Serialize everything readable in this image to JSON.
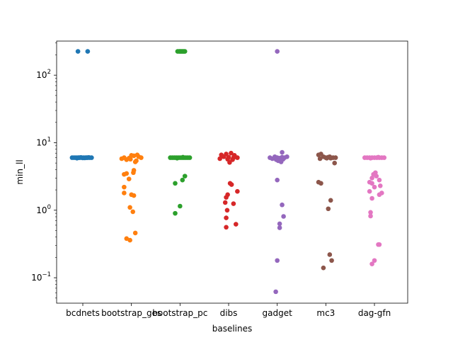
{
  "chart_data": {
    "type": "scatter",
    "title": "",
    "xlabel": "baselines",
    "ylabel": "min_ll",
    "yscale": "log",
    "ylim": [
      0.042,
      320
    ],
    "yticks": [
      {
        "value": 0.1,
        "base": "10",
        "exp": "−1"
      },
      {
        "value": 1,
        "base": "10",
        "exp": "0"
      },
      {
        "value": 10,
        "base": "10",
        "exp": "1"
      },
      {
        "value": 100,
        "base": "10",
        "exp": "2"
      }
    ],
    "grid": false,
    "legend": "none",
    "categories": [
      "bcdnets",
      "bootstrap_ges",
      "bootstrap_pc",
      "dibs",
      "gadget",
      "mc3",
      "dag-gfn"
    ],
    "series": [
      {
        "color": "#1f77b4",
        "points": [
          [
            -0.1,
            225
          ],
          [
            0.1,
            225
          ],
          [
            -0.22,
            6
          ],
          [
            -0.18,
            6
          ],
          [
            -0.14,
            6
          ],
          [
            -0.1,
            6
          ],
          [
            -0.06,
            6
          ],
          [
            -0.02,
            6
          ],
          [
            0.02,
            6
          ],
          [
            0.06,
            6
          ],
          [
            0.1,
            6
          ],
          [
            0.14,
            6
          ],
          [
            0.18,
            6
          ],
          [
            -0.12,
            5.9
          ],
          [
            0.0,
            5.95
          ],
          [
            0.12,
            6.05
          ],
          [
            -0.04,
            6.05
          ],
          [
            0.04,
            5.95
          ],
          [
            0.08,
            6.0
          ],
          [
            -0.08,
            6.0
          ]
        ]
      },
      {
        "color": "#ff7f0e",
        "points": [
          [
            -0.15,
            6.0
          ],
          [
            -0.05,
            5.9
          ],
          [
            0.05,
            6.4
          ],
          [
            0.15,
            6.2
          ],
          [
            -0.1,
            5.6
          ],
          [
            0.0,
            6.5
          ],
          [
            0.1,
            5.4
          ],
          [
            -0.2,
            5.8
          ],
          [
            0.2,
            6.0
          ],
          [
            0.08,
            5.2
          ],
          [
            -0.02,
            5.7
          ],
          [
            0.12,
            6.6
          ],
          [
            0.05,
            3.9
          ],
          [
            0.04,
            3.6
          ],
          [
            -0.1,
            3.5
          ],
          [
            -0.15,
            3.4
          ],
          [
            -0.05,
            2.9
          ],
          [
            -0.15,
            2.2
          ],
          [
            -0.15,
            1.8
          ],
          [
            0.0,
            1.7
          ],
          [
            0.05,
            1.65
          ],
          [
            -0.03,
            1.1
          ],
          [
            0.03,
            0.95
          ],
          [
            0.08,
            0.46
          ],
          [
            -0.1,
            0.38
          ],
          [
            -0.03,
            0.36
          ]
        ]
      },
      {
        "color": "#2ca02c",
        "points": [
          [
            -0.05,
            225
          ],
          [
            -0.02,
            225
          ],
          [
            0.0,
            225
          ],
          [
            0.02,
            225
          ],
          [
            0.04,
            225
          ],
          [
            0.06,
            225
          ],
          [
            0.08,
            225
          ],
          [
            0.1,
            225
          ],
          [
            -0.2,
            6
          ],
          [
            -0.16,
            6
          ],
          [
            -0.12,
            6
          ],
          [
            -0.08,
            6
          ],
          [
            -0.04,
            6
          ],
          [
            0.0,
            6
          ],
          [
            0.04,
            6
          ],
          [
            0.08,
            6
          ],
          [
            0.12,
            6
          ],
          [
            0.16,
            6
          ],
          [
            0.2,
            6
          ],
          [
            -0.06,
            5.9
          ],
          [
            0.06,
            6.1
          ],
          [
            0.1,
            3.2
          ],
          [
            0.05,
            2.8
          ],
          [
            -0.1,
            2.5
          ],
          [
            0.0,
            1.15
          ],
          [
            -0.1,
            0.9
          ]
        ]
      },
      {
        "color": "#d62728",
        "points": [
          [
            -0.15,
            6.6
          ],
          [
            -0.05,
            6.8
          ],
          [
            0.05,
            7.0
          ],
          [
            0.12,
            6.5
          ],
          [
            -0.1,
            6.2
          ],
          [
            0.0,
            6.1
          ],
          [
            0.1,
            6.0
          ],
          [
            0.18,
            6.0
          ],
          [
            -0.18,
            5.8
          ],
          [
            -0.02,
            5.7
          ],
          [
            0.08,
            5.6
          ],
          [
            0.02,
            5.1
          ],
          [
            0.03,
            2.5
          ],
          [
            0.06,
            2.4
          ],
          [
            0.18,
            1.9
          ],
          [
            -0.02,
            1.7
          ],
          [
            -0.05,
            1.55
          ],
          [
            -0.07,
            1.3
          ],
          [
            0.1,
            1.25
          ],
          [
            -0.03,
            1.0
          ],
          [
            -0.05,
            0.77
          ],
          [
            0.15,
            0.62
          ],
          [
            -0.05,
            0.56
          ]
        ]
      },
      {
        "color": "#9467bd",
        "points": [
          [
            0.0,
            225
          ],
          [
            0.1,
            7.2
          ],
          [
            -0.15,
            6.0
          ],
          [
            -0.1,
            5.8
          ],
          [
            -0.05,
            6.2
          ],
          [
            0.0,
            6.0
          ],
          [
            0.05,
            5.9
          ],
          [
            0.1,
            6.1
          ],
          [
            0.15,
            6.0
          ],
          [
            0.2,
            6.2
          ],
          [
            -0.02,
            5.6
          ],
          [
            0.02,
            5.4
          ],
          [
            0.08,
            5.2
          ],
          [
            0.12,
            5.7
          ],
          [
            0.0,
            2.8
          ],
          [
            0.1,
            1.2
          ],
          [
            0.13,
            0.81
          ],
          [
            0.05,
            0.63
          ],
          [
            0.05,
            0.55
          ],
          [
            0.0,
            0.18
          ],
          [
            -0.03,
            0.062
          ]
        ]
      },
      {
        "color": "#8c564b",
        "points": [
          [
            -0.15,
            6.6
          ],
          [
            -0.1,
            6.8
          ],
          [
            -0.05,
            6.2
          ],
          [
            0.0,
            6.0
          ],
          [
            0.05,
            6.1
          ],
          [
            0.1,
            5.9
          ],
          [
            0.15,
            6.0
          ],
          [
            0.2,
            6.0
          ],
          [
            -0.12,
            5.8
          ],
          [
            0.02,
            5.9
          ],
          [
            0.08,
            6.2
          ],
          [
            0.18,
            5.0
          ],
          [
            -0.15,
            2.6
          ],
          [
            -0.1,
            2.5
          ],
          [
            0.1,
            1.4
          ],
          [
            0.05,
            1.05
          ],
          [
            0.08,
            0.22
          ],
          [
            0.12,
            0.18
          ],
          [
            -0.05,
            0.14
          ]
        ]
      },
      {
        "color": "#e377c2",
        "points": [
          [
            -0.2,
            6.0
          ],
          [
            -0.15,
            6.0
          ],
          [
            -0.1,
            6.0
          ],
          [
            -0.05,
            6.0
          ],
          [
            0.0,
            6.0
          ],
          [
            0.05,
            6.0
          ],
          [
            0.1,
            6.0
          ],
          [
            0.15,
            6.0
          ],
          [
            0.2,
            6.0
          ],
          [
            0.08,
            6.1
          ],
          [
            -0.08,
            5.9
          ],
          [
            0.02,
            3.6
          ],
          [
            -0.02,
            3.4
          ],
          [
            0.04,
            3.2
          ],
          [
            -0.05,
            3.0
          ],
          [
            0.1,
            2.8
          ],
          [
            -0.1,
            2.6
          ],
          [
            -0.05,
            2.5
          ],
          [
            0.12,
            2.3
          ],
          [
            0.0,
            2.2
          ],
          [
            -0.1,
            1.9
          ],
          [
            0.15,
            1.8
          ],
          [
            0.1,
            1.7
          ],
          [
            -0.05,
            1.5
          ],
          [
            -0.08,
            0.93
          ],
          [
            -0.08,
            0.82
          ],
          [
            0.08,
            0.31
          ],
          [
            0.1,
            0.31
          ],
          [
            0.0,
            0.18
          ],
          [
            -0.05,
            0.16
          ]
        ]
      }
    ]
  }
}
